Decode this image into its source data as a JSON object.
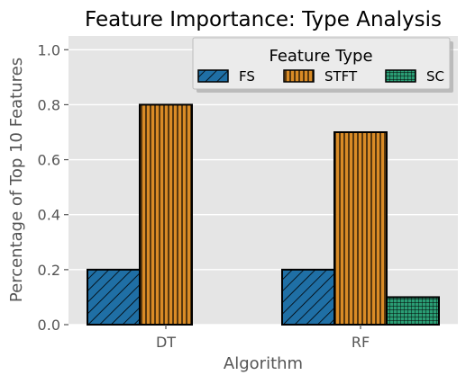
{
  "chart_data": {
    "type": "bar",
    "title": "Feature Importance: Type Analysis",
    "xlabel": "Algorithm",
    "ylabel": "Percentage of Top 10 Features",
    "categories": [
      "DT",
      "RF"
    ],
    "ylim": [
      0,
      1.05
    ],
    "yticks": [
      "0.0",
      "0.2",
      "0.4",
      "0.6",
      "0.8",
      "1.0"
    ],
    "ytick_values": [
      0,
      0.2,
      0.4,
      0.6,
      0.8,
      1.0
    ],
    "grid": true,
    "legend": {
      "title": "Feature Type",
      "placement": "top-right"
    },
    "series": [
      {
        "name": "FS",
        "values": [
          0.2,
          0.2
        ],
        "color": "#1f6fa5",
        "hatch": "diagonal"
      },
      {
        "name": "STFT",
        "values": [
          0.8,
          0.7
        ],
        "color": "#d98b26",
        "hatch": "vertical"
      },
      {
        "name": "SC",
        "values": [
          0.0,
          0.1
        ],
        "color": "#2a9d74",
        "hatch": "grid"
      }
    ]
  }
}
